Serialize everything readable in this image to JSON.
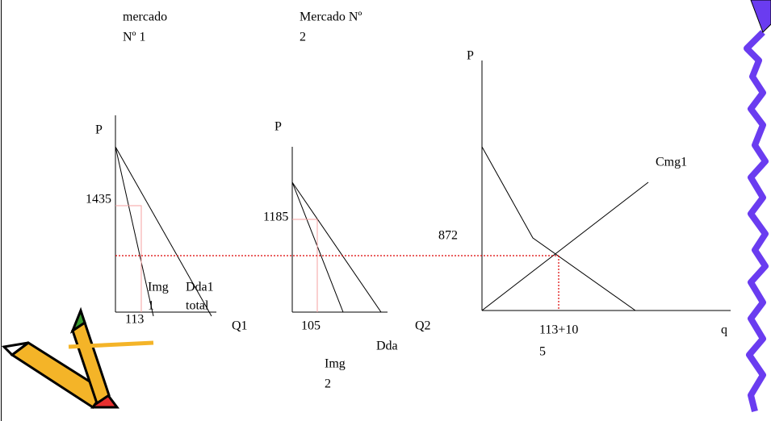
{
  "panels": [
    {
      "title": [
        "mercado",
        "Nº 1"
      ],
      "y_label": "P",
      "x_label": "Q1",
      "price": "1435",
      "quantity": "113",
      "curves": [
        [
          "Img",
          "1"
        ],
        [
          "Dda1",
          "total"
        ]
      ]
    },
    {
      "title": [
        "Mercado Nº",
        "2"
      ],
      "y_label": "P",
      "x_label": "Q2",
      "price": "1185",
      "quantity": "105",
      "curves": [
        [
          "Img",
          "2"
        ],
        [
          "Dda"
        ]
      ]
    },
    {
      "y_label": "P",
      "x_label": "q",
      "price": "872",
      "quantity": [
        "113+10",
        "5"
      ],
      "curves": [
        [
          "Cmg1"
        ]
      ]
    }
  ]
}
